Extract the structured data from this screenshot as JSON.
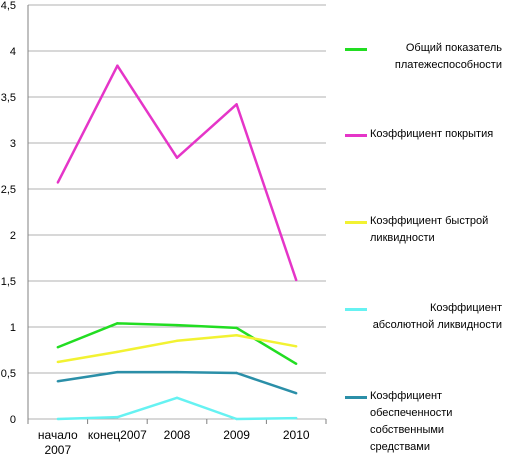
{
  "chart_data": {
    "type": "line",
    "title": "",
    "xlabel": "",
    "ylabel": "",
    "categories": [
      "начало\n2007",
      "конец2007",
      "2008",
      "2009",
      "2010"
    ],
    "ylim": [
      0,
      4.5
    ],
    "yticks": [
      "0",
      "0,5",
      "1",
      "1,5",
      "2",
      "2,5",
      "3",
      "3,5",
      "4",
      "4,5"
    ],
    "ytick_values": [
      0,
      0.5,
      1,
      1.5,
      2,
      2.5,
      3,
      3.5,
      4,
      4.5
    ],
    "grid": "horizontal",
    "legend_position": "right",
    "series": [
      {
        "name": "Общий показатель платежеспособности",
        "color": "#22dd22",
        "values": [
          0.78,
          1.04,
          1.02,
          0.99,
          0.6
        ]
      },
      {
        "name": "Коэффициент покрытия",
        "color": "#e535c8",
        "values": [
          2.57,
          3.84,
          2.84,
          3.42,
          1.51
        ]
      },
      {
        "name": "Коэффициент быстрой ликвидности",
        "color": "#f2f232",
        "values": [
          0.62,
          0.73,
          0.85,
          0.91,
          0.79
        ]
      },
      {
        "name": "Коэффициент абсолютной ликвидности",
        "color": "#66f2f2",
        "values": [
          0.0,
          0.02,
          0.23,
          0.0,
          0.01
        ]
      },
      {
        "name": "Коэффициент обеспеченности собственными средствами",
        "color": "#2b8fa8",
        "values": [
          0.41,
          0.51,
          0.51,
          0.5,
          0.28
        ]
      }
    ]
  }
}
